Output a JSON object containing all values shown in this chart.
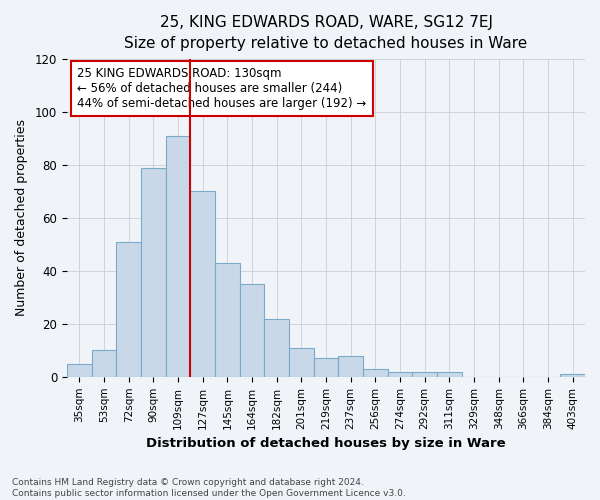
{
  "title": "25, KING EDWARDS ROAD, WARE, SG12 7EJ",
  "subtitle": "Size of property relative to detached houses in Ware",
  "xlabel": "Distribution of detached houses by size in Ware",
  "ylabel": "Number of detached properties",
  "categories": [
    "35sqm",
    "53sqm",
    "72sqm",
    "90sqm",
    "109sqm",
    "127sqm",
    "145sqm",
    "164sqm",
    "182sqm",
    "201sqm",
    "219sqm",
    "237sqm",
    "256sqm",
    "274sqm",
    "292sqm",
    "311sqm",
    "329sqm",
    "348sqm",
    "366sqm",
    "384sqm",
    "403sqm"
  ],
  "values": [
    5,
    10,
    51,
    79,
    91,
    70,
    43,
    35,
    22,
    11,
    7,
    8,
    3,
    2,
    2,
    2,
    0,
    0,
    0,
    0,
    1
  ],
  "bar_color": "#c8d8e8",
  "bar_edgecolor": "#7aaac8",
  "vline_index": 5,
  "vline_color": "#cc0000",
  "annotation_text": "25 KING EDWARDS ROAD: 130sqm\n← 56% of detached houses are smaller (244)\n44% of semi-detached houses are larger (192) →",
  "annotation_box_color": "#cc0000",
  "ylim": [
    0,
    120
  ],
  "yticks": [
    0,
    20,
    40,
    60,
    80,
    100,
    120
  ],
  "footnote1": "Contains HM Land Registry data © Crown copyright and database right 2024.",
  "footnote2": "Contains public sector information licensed under the Open Government Licence v3.0.",
  "background_color": "#f0f4f8",
  "plot_bg_color": "#f0f4f8",
  "title_fontsize": 11,
  "subtitle_fontsize": 10
}
